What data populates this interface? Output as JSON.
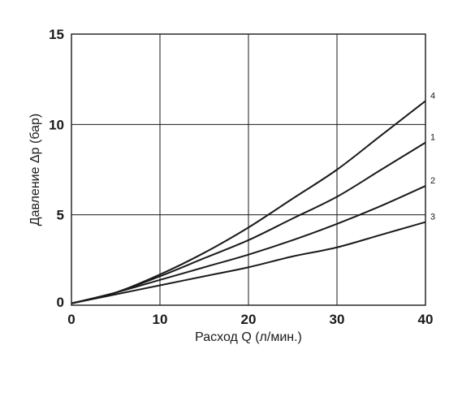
{
  "chart_data": {
    "type": "line",
    "title": "",
    "xlabel": "Расход Q (л/мин.)",
    "ylabel": "Давление Δp (бар)",
    "xlim": [
      0,
      40
    ],
    "ylim": [
      0,
      15
    ],
    "x_ticks": [
      "0",
      "10",
      "20",
      "30",
      "40"
    ],
    "y_ticks": [
      "0",
      "5",
      "10",
      "15"
    ],
    "grid": true,
    "series": [
      {
        "name": "4",
        "x": [
          0,
          5,
          10,
          15,
          20,
          25,
          30,
          35,
          40
        ],
        "y": [
          0.1,
          0.7,
          1.7,
          2.9,
          4.3,
          5.9,
          7.5,
          9.4,
          11.3
        ]
      },
      {
        "name": "1",
        "x": [
          0,
          5,
          10,
          15,
          20,
          25,
          30,
          35,
          40
        ],
        "y": [
          0.1,
          0.7,
          1.6,
          2.6,
          3.6,
          4.8,
          6.0,
          7.5,
          9.0
        ]
      },
      {
        "name": "2",
        "x": [
          0,
          5,
          10,
          15,
          20,
          25,
          30,
          35,
          40
        ],
        "y": [
          0.1,
          0.7,
          1.4,
          2.1,
          2.8,
          3.6,
          4.5,
          5.5,
          6.6
        ]
      },
      {
        "name": "3",
        "x": [
          0,
          5,
          10,
          15,
          20,
          25,
          30,
          35,
          40
        ],
        "y": [
          0.1,
          0.6,
          1.1,
          1.6,
          2.1,
          2.7,
          3.2,
          3.9,
          4.6
        ]
      }
    ]
  }
}
